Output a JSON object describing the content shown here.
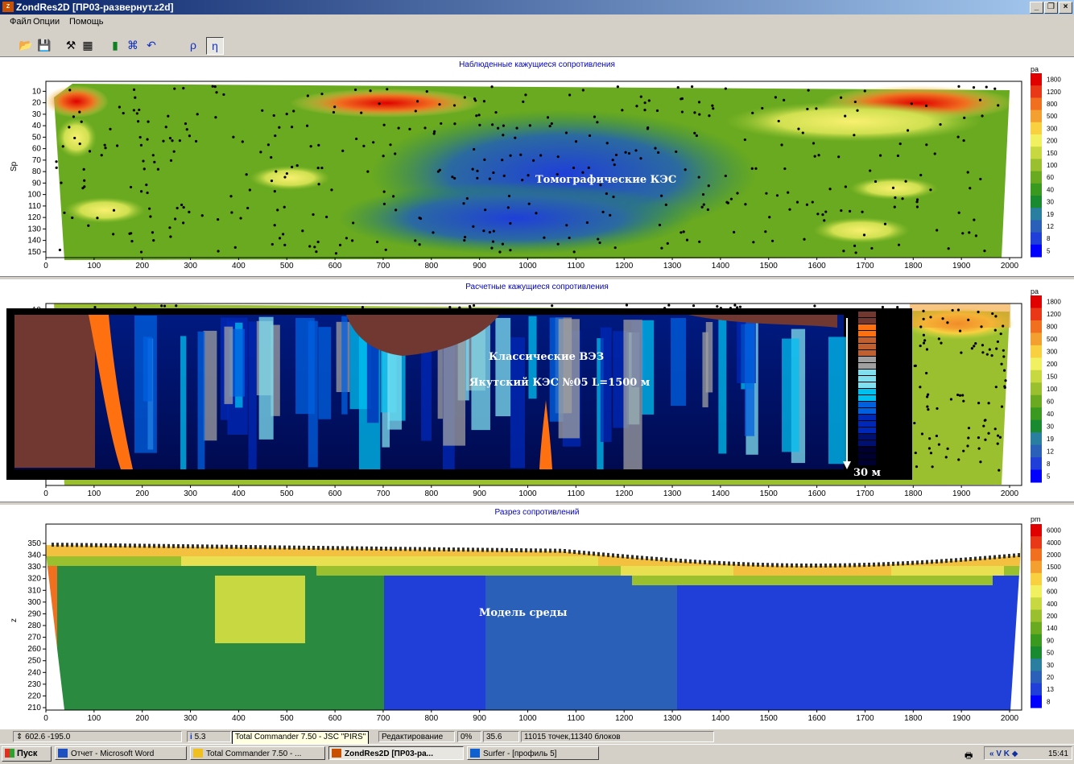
{
  "window": {
    "title": "ZondRes2D [ПР03-развернут.z2d]",
    "icon": "zond-app-icon"
  },
  "menu": [
    "Файл",
    "Опции",
    "Помощь"
  ],
  "toolbar": [
    {
      "name": "open-icon",
      "glyph": "📂"
    },
    {
      "name": "save-icon",
      "glyph": "💾"
    },
    {
      "name": "tools-icon",
      "glyph": "⚒"
    },
    {
      "name": "table-icon",
      "glyph": "▦"
    },
    {
      "name": "calculator-icon",
      "glyph": "▮"
    },
    {
      "name": "invert-icon",
      "glyph": "⌘"
    },
    {
      "name": "undo-icon",
      "glyph": "↶"
    },
    {
      "name": "rho-button",
      "glyph": "ρ"
    },
    {
      "name": "eta-button",
      "glyph": "η"
    }
  ],
  "colors": {
    "rho_scale": [
      "#0000ff",
      "#1f3fd8",
      "#2b60b8",
      "#2a7fa0",
      "#1a8a30",
      "#3a9a20",
      "#6aaa20",
      "#9ac030",
      "#c8d840",
      "#f0f060",
      "#f8d040",
      "#f4a030",
      "#f07020",
      "#e83818",
      "#e00000"
    ],
    "model_scale": [
      "#0000ff",
      "#1f3fd8",
      "#2b60b8",
      "#2a7fa0",
      "#1a8a30",
      "#3a9a20",
      "#6aaa20",
      "#9ac030",
      "#c8d840",
      "#f0f060",
      "#f8d040",
      "#f4a030",
      "#f07020",
      "#e83818",
      "#e00000"
    ],
    "ves_scale": [
      "#000030",
      "#001070",
      "#0028b8",
      "#0060e0",
      "#00c0f0",
      "#80e0f0",
      "#a0a0a0",
      "#c06030",
      "#ff7010",
      "#703830"
    ]
  },
  "panels": [
    {
      "title": "Наблюденные кажущиеся сопротивления",
      "annotation": "Томографические КЭС",
      "ylabel": "Sp",
      "scale_unit": "pa",
      "chart_data": {
        "type": "heatmap",
        "x_ticks": [
          0,
          100,
          200,
          300,
          400,
          500,
          600,
          700,
          800,
          900,
          1000,
          1100,
          1200,
          1300,
          1400,
          1500,
          1600,
          1700,
          1800,
          1900,
          2000
        ],
        "y_ticks": [
          10,
          20,
          30,
          40,
          50,
          60,
          70,
          80,
          90,
          100,
          110,
          120,
          130,
          140,
          150
        ],
        "ylim": [
          155,
          2
        ],
        "scale_labels": [
          "1800",
          "1200",
          "800",
          "500",
          "300",
          "200",
          "150",
          "100",
          "60",
          "40",
          "30",
          "19",
          "12",
          "8",
          "5"
        ]
      }
    },
    {
      "title": "Расчетные кажущиеся сопротивления",
      "annotation": "Классические ВЭЗ",
      "annotation2": "Якутский КЭС №05 L=1500 м",
      "depth_label": "30 м",
      "scale_unit": "pa",
      "chart_data": {
        "type": "heatmap",
        "x_ticks": [
          0,
          100,
          200,
          300,
          400,
          500,
          600,
          700,
          800,
          900,
          1000,
          1100,
          1200,
          1300,
          1400,
          1500,
          1600,
          1700,
          1800,
          1900,
          2000
        ],
        "y_ticks": [
          10
        ],
        "scale_labels": [
          "1800",
          "1200",
          "800",
          "500",
          "300",
          "200",
          "150",
          "100",
          "60",
          "40",
          "30",
          "19",
          "12",
          "8",
          "5"
        ]
      }
    },
    {
      "title": "Разрез сопротивлений",
      "annotation": "Модель среды",
      "ylabel": "z",
      "scale_unit": "pm",
      "chart_data": {
        "type": "heatmap",
        "x_ticks": [
          0,
          100,
          200,
          300,
          400,
          500,
          600,
          700,
          800,
          900,
          1000,
          1100,
          1200,
          1300,
          1400,
          1500,
          1600,
          1700,
          1800,
          1900,
          2000
        ],
        "y_ticks": [
          350,
          340,
          330,
          320,
          310,
          300,
          290,
          280,
          270,
          260,
          250,
          240,
          230,
          220,
          210
        ],
        "ylim": [
          208,
          356
        ],
        "scale_labels": [
          "6000",
          "4000",
          "2000",
          "1500",
          "900",
          "600",
          "400",
          "200",
          "140",
          "90",
          "50",
          "30",
          "20",
          "13",
          "8"
        ]
      }
    }
  ],
  "status": {
    "coords": "602.6 -195.0",
    "info": "5.3",
    "mode": "Редактирование",
    "percent": "0%",
    "value": "35.6",
    "counts": "11015 точек,11340 блоков",
    "tooltip": "Total Commander 7.50 - JSC \"PIRS\""
  },
  "taskbar": {
    "start": "Пуск",
    "tasks": [
      "Отчет - Microsoft Word",
      "Total Commander 7.50 - ...",
      "ZondRes2D [ПР03-ра...",
      "Surfer - [профиль 5]"
    ],
    "clock": "15:41"
  }
}
